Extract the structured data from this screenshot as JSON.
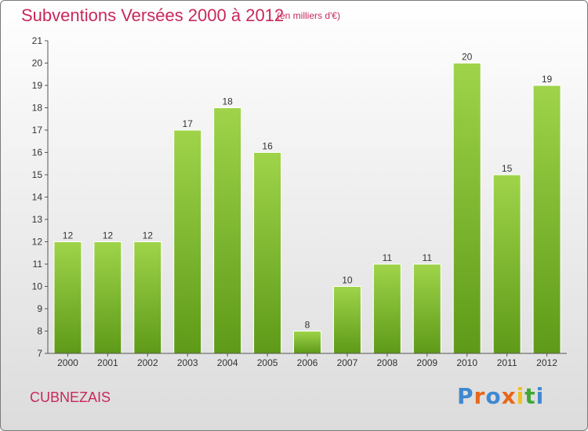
{
  "header": {
    "title": "Subventions Versées 2000 à 2012",
    "subtitle": "(en milliers d'€)"
  },
  "footer": {
    "commune": "CUBNEZAIS",
    "logo_text": "Proxiti"
  },
  "colors": {
    "title": "#c8285a",
    "bar_top": "#9fd44a",
    "bar_bottom": "#5e9a18",
    "axis": "#555555",
    "logo": [
      "#3f88d1",
      "#e8661a",
      "#3f88d1",
      "#e8661a",
      "#f0c020",
      "#3fa835",
      "#3f88d1"
    ]
  },
  "chart_data": {
    "type": "bar",
    "title": "Subventions Versées 2000 à 2012",
    "categories": [
      "2000",
      "2001",
      "2002",
      "2003",
      "2004",
      "2005",
      "2006",
      "2007",
      "2008",
      "2009",
      "2010",
      "2011",
      "2012"
    ],
    "values": [
      12,
      12,
      12,
      17,
      18,
      16,
      8,
      10,
      11,
      11,
      20,
      15,
      19
    ],
    "ylim": [
      7,
      21
    ],
    "yticks": [
      7,
      8,
      9,
      10,
      11,
      12,
      13,
      14,
      15,
      16,
      17,
      18,
      19,
      20,
      21
    ],
    "grid": false,
    "data_labels": true
  }
}
